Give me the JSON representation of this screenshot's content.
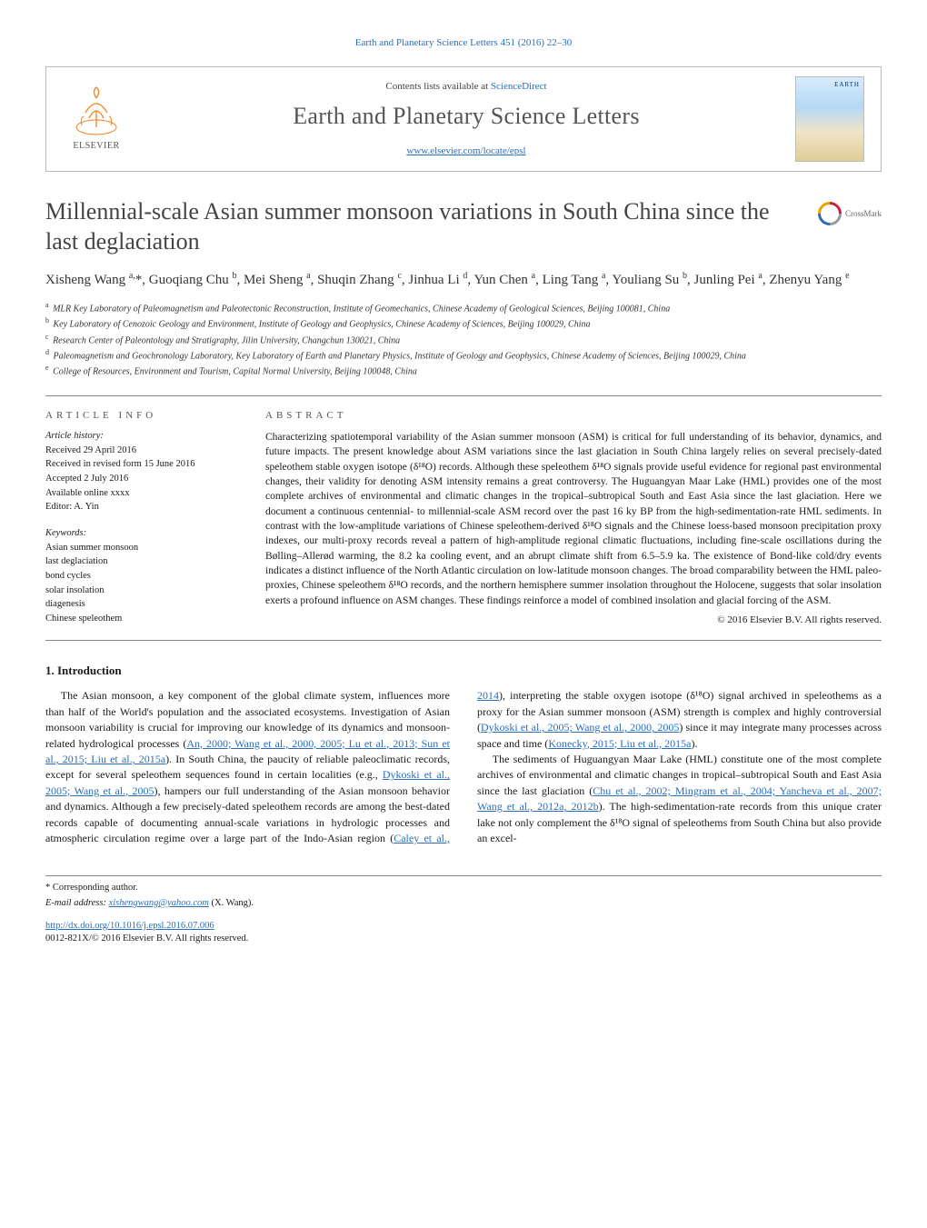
{
  "top_citation": "Earth and Planetary Science Letters 451 (2016) 22–30",
  "masthead": {
    "contents_prefix": "Contents lists available at ",
    "contents_link": "ScienceDirect",
    "journal_name": "Earth and Planetary Science Letters",
    "journal_url": "www.elsevier.com/locate/epsl",
    "elsevier_label": "ELSEVIER"
  },
  "crossmark_label": "CrossMark",
  "title": "Millennial-scale Asian summer monsoon variations in South China since the last deglaciation",
  "authors_html": "Xisheng Wang <sup>a,</sup>*, Guoqiang Chu <sup>b</sup>, Mei Sheng <sup>a</sup>, Shuqin Zhang <sup>c</sup>, Jinhua Li <sup>d</sup>, Yun Chen <sup>a</sup>, Ling Tang <sup>a</sup>, Youliang Su <sup>b</sup>, Junling Pei <sup>a</sup>, Zhenyu Yang <sup>e</sup>",
  "affiliations": [
    {
      "sup": "a",
      "text": "MLR Key Laboratory of Paleomagnetism and Paleotectonic Reconstruction, Institute of Geomechanics, Chinese Academy of Geological Sciences, Beijing 100081, China"
    },
    {
      "sup": "b",
      "text": "Key Laboratory of Cenozoic Geology and Environment, Institute of Geology and Geophysics, Chinese Academy of Sciences, Beijing 100029, China"
    },
    {
      "sup": "c",
      "text": "Research Center of Paleontology and Stratigraphy, Jilin University, Changchun 130021, China"
    },
    {
      "sup": "d",
      "text": "Paleomagnetism and Geochronology Laboratory, Key Laboratory of Earth and Planetary Physics, Institute of Geology and Geophysics, Chinese Academy of Sciences, Beijing 100029, China"
    },
    {
      "sup": "e",
      "text": "College of Resources, Environment and Tourism, Capital Normal University, Beijing 100048, China"
    }
  ],
  "article_info_heading": "article info",
  "abstract_heading": "abstract",
  "history_label": "Article history:",
  "history": [
    "Received 29 April 2016",
    "Received in revised form 15 June 2016",
    "Accepted 2 July 2016",
    "Available online xxxx",
    "Editor: A. Yin"
  ],
  "keywords_label": "Keywords:",
  "keywords": [
    "Asian summer monsoon",
    "last deglaciation",
    "bond cycles",
    "solar insolation",
    "diagenesis",
    "Chinese speleothem"
  ],
  "abstract": "Characterizing spatiotemporal variability of the Asian summer monsoon (ASM) is critical for full understanding of its behavior, dynamics, and future impacts. The present knowledge about ASM variations since the last glaciation in South China largely relies on several precisely-dated speleothem stable oxygen isotope (δ¹⁸O) records. Although these speleothem δ¹⁸O signals provide useful evidence for regional past environmental changes, their validity for denoting ASM intensity remains a great controversy. The Huguangyan Maar Lake (HML) provides one of the most complete archives of environmental and climatic changes in the tropical–subtropical South and East Asia since the last glaciation. Here we document a continuous centennial- to millennial-scale ASM record over the past 16 ky BP from the high-sedimentation-rate HML sediments. In contrast with the low-amplitude variations of Chinese speleothem-derived δ¹⁸O signals and the Chinese loess-based monsoon precipitation proxy indexes, our multi-proxy records reveal a pattern of high-amplitude regional climatic fluctuations, including fine-scale oscillations during the Bølling–Allerød warming, the 8.2 ka cooling event, and an abrupt climate shift from 6.5–5.9 ka. The existence of Bond-like cold/dry events indicates a distinct influence of the North Atlantic circulation on low-latitude monsoon changes. The broad comparability between the HML paleo-proxies, Chinese speleothem δ¹⁸O records, and the northern hemisphere summer insolation throughout the Holocene, suggests that solar insolation exerts a profound influence on ASM changes. These findings reinforce a model of combined insolation and glacial forcing of the ASM.",
  "copyright": "© 2016 Elsevier B.V. All rights reserved.",
  "intro_heading": "1. Introduction",
  "intro_p1_a": "The Asian monsoon, a key component of the global climate system, influences more than half of the World's population and the associated ecosystems. Investigation of Asian monsoon variability is crucial for improving our knowledge of its dynamics and monsoon-related hydrological processes (",
  "intro_p1_refs1": "An, 2000; Wang et al., 2000, 2005; Lu et al., 2013; Sun et al., 2015; Liu et al., 2015a",
  "intro_p1_b": "). In South China, the paucity of reliable paleoclimatic records, except for several speleothem sequences found in certain localities (e.g., ",
  "intro_p1_refs2": "Dykoski et al., 2005; Wang et al., 2005",
  "intro_p1_c": "), hampers our full understanding of the Asian monsoon behavior and dynamics. Al",
  "intro_p1_d": "though a few precisely-dated speleothem records are among the best-dated records capable of documenting annual-scale variations in hydrologic processes and atmospheric circulation regime over a large part of the Indo-Asian region (",
  "intro_p1_refs3": "Caley et al., 2014",
  "intro_p1_e": "), interpreting the stable oxygen isotope (δ¹⁸O) signal archived in speleothems as a proxy for the Asian summer monsoon (ASM) strength is complex and highly controversial (",
  "intro_p1_refs4": "Dykoski et al., 2005; Wang et al., 2000, 2005",
  "intro_p1_f": ") since it may integrate many processes across space and time (",
  "intro_p1_refs5": "Konecky, 2015; Liu et al., 2015a",
  "intro_p1_g": ").",
  "intro_p2_a": "The sediments of Huguangyan Maar Lake (HML) constitute one of the most complete archives of environmental and climatic changes in tropical–subtropical South and East Asia since the last glaciation (",
  "intro_p2_refs1": "Chu et al., 2002; Mingram et al., 2004; Yancheva et al., 2007; Wang et al., 2012a, 2012b",
  "intro_p2_b": "). The high-sedimentation-rate records from this unique crater lake not only complement the δ¹⁸O signal of speleothems from South China but also provide an excel-",
  "footer": {
    "corr_label": "* Corresponding author.",
    "email_label": "E-mail address: ",
    "email": "xishengwang@yahoo.com",
    "email_author": " (X. Wang).",
    "doi_url": "http://dx.doi.org/10.1016/j.epsl.2016.07.006",
    "issn_line": "0012-821X/© 2016 Elsevier B.V. All rights reserved."
  }
}
